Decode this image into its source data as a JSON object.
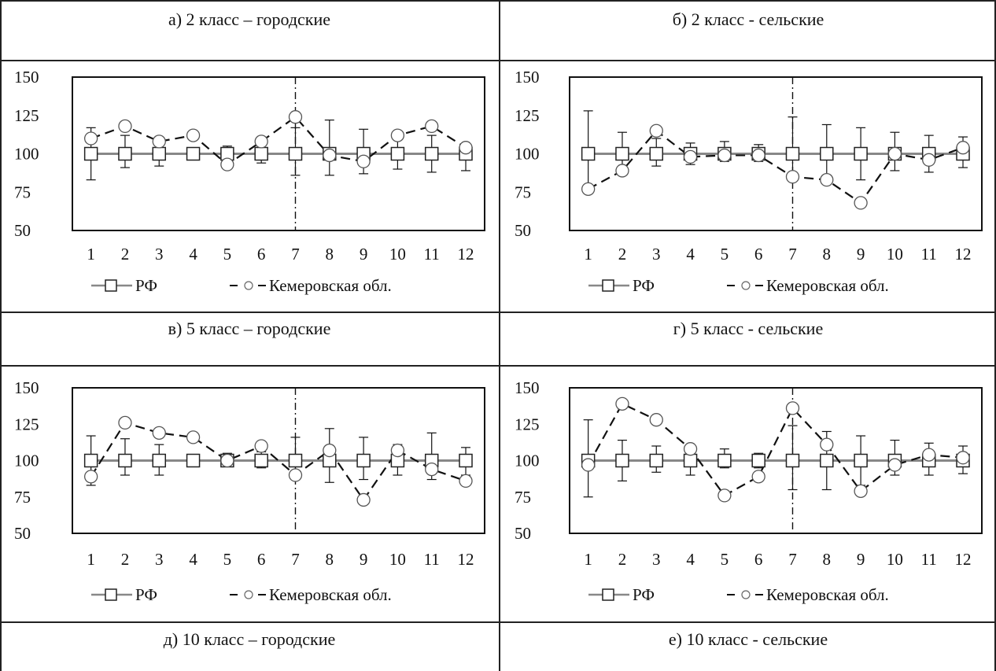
{
  "colors": {
    "line": "#111111",
    "rf_line": "#888888",
    "marker_stroke": "#222222"
  },
  "icons": {
    "rf_marker": "square-marker-icon",
    "kem_marker": "circle-marker-icon"
  },
  "rows": [
    {
      "left_title": "а) 2 класс – городские",
      "right_title": "б) 2 класс - сельские"
    },
    {
      "left_title": "в) 5 класс – городские",
      "right_title": "г) 5 класс - сельские"
    },
    {
      "left_title": "д) 10 класс – городские",
      "right_title": "е) 10 класс - сельские"
    }
  ],
  "chart_data": [
    {
      "type": "line",
      "panel": "а",
      "x": [
        1,
        2,
        3,
        4,
        5,
        6,
        7,
        8,
        9,
        10,
        11,
        12
      ],
      "ylim": [
        50,
        150
      ],
      "yticks": [
        50,
        75,
        100,
        125,
        150
      ],
      "xticks": [
        "1",
        "2",
        "3",
        "4",
        "5",
        "6",
        "7",
        "8",
        "9",
        "10",
        "11",
        "12"
      ],
      "divider_after": 6.5,
      "series": [
        {
          "name": "РФ",
          "marker": "square",
          "values": [
            100,
            100,
            100,
            100,
            100,
            100,
            100,
            100,
            100,
            100,
            100,
            100
          ],
          "err_up": [
            17,
            12,
            9,
            3,
            5,
            8,
            17,
            22,
            16,
            12,
            12,
            5
          ],
          "err_down": [
            17,
            9,
            8,
            3,
            5,
            6,
            14,
            14,
            13,
            10,
            12,
            11
          ]
        },
        {
          "name": "Кемеровская обл.",
          "marker": "circle",
          "values": [
            110,
            118,
            108,
            112,
            93,
            108,
            124,
            99,
            95,
            112,
            118,
            104
          ]
        }
      ],
      "legend": [
        "РФ",
        "Кемеровская обл."
      ]
    },
    {
      "type": "line",
      "panel": "б",
      "x": [
        1,
        2,
        3,
        4,
        5,
        6,
        7,
        8,
        9,
        10,
        11,
        12
      ],
      "ylim": [
        50,
        150
      ],
      "yticks": [
        50,
        75,
        100,
        125,
        150
      ],
      "xticks": [
        "1",
        "2",
        "3",
        "4",
        "5",
        "6",
        "7",
        "8",
        "9",
        "10",
        "11",
        "12"
      ],
      "divider_after": 6.5,
      "series": [
        {
          "name": "РФ",
          "marker": "square",
          "values": [
            100,
            100,
            100,
            100,
            100,
            100,
            100,
            100,
            100,
            100,
            100,
            100
          ],
          "err_up": [
            28,
            14,
            10,
            7,
            8,
            6,
            24,
            19,
            17,
            14,
            12,
            11
          ],
          "err_down": [
            23,
            10,
            8,
            7,
            5,
            5,
            15,
            14,
            17,
            11,
            12,
            9
          ]
        },
        {
          "name": "Кемеровская обл.",
          "marker": "circle",
          "values": [
            77,
            89,
            115,
            98,
            99,
            99,
            85,
            83,
            68,
            100,
            96,
            104
          ]
        }
      ],
      "legend": [
        "РФ",
        "Кемеровская обл."
      ]
    },
    {
      "type": "line",
      "panel": "в",
      "x": [
        1,
        2,
        3,
        4,
        5,
        6,
        7,
        8,
        9,
        10,
        11,
        12
      ],
      "ylim": [
        50,
        150
      ],
      "yticks": [
        50,
        75,
        100,
        125,
        150
      ],
      "xticks": [
        "1",
        "2",
        "3",
        "4",
        "5",
        "6",
        "7",
        "8",
        "9",
        "10",
        "11",
        "12"
      ],
      "divider_after": 6.5,
      "series": [
        {
          "name": "РФ",
          "marker": "square",
          "values": [
            100,
            100,
            100,
            100,
            100,
            100,
            100,
            100,
            100,
            100,
            100,
            100
          ],
          "err_up": [
            17,
            15,
            11,
            3,
            5,
            6,
            16,
            22,
            16,
            11,
            19,
            9
          ],
          "err_down": [
            17,
            10,
            10,
            3,
            4,
            5,
            13,
            15,
            13,
            10,
            13,
            10
          ]
        },
        {
          "name": "Кемеровская обл.",
          "marker": "circle",
          "values": [
            89,
            126,
            119,
            116,
            100,
            110,
            90,
            107,
            73,
            107,
            94,
            86
          ]
        }
      ],
      "legend": [
        "РФ",
        "Кемеровская обл."
      ]
    },
    {
      "type": "line",
      "panel": "г",
      "x": [
        1,
        2,
        3,
        4,
        5,
        6,
        7,
        8,
        9,
        10,
        11,
        12
      ],
      "ylim": [
        50,
        150
      ],
      "yticks": [
        50,
        75,
        100,
        125,
        150
      ],
      "xticks": [
        "1",
        "2",
        "3",
        "4",
        "5",
        "6",
        "7",
        "8",
        "9",
        "10",
        "11",
        "12"
      ],
      "divider_after": 6.5,
      "series": [
        {
          "name": "РФ",
          "marker": "square",
          "values": [
            100,
            100,
            100,
            100,
            100,
            100,
            100,
            100,
            100,
            100,
            100,
            100
          ],
          "err_up": [
            28,
            14,
            10,
            10,
            8,
            5,
            24,
            20,
            17,
            14,
            12,
            10
          ],
          "err_down": [
            25,
            14,
            8,
            10,
            5,
            5,
            20,
            20,
            17,
            10,
            10,
            9
          ]
        },
        {
          "name": "Кемеровская обл.",
          "marker": "circle",
          "values": [
            97,
            139,
            128,
            108,
            76,
            89,
            136,
            111,
            79,
            97,
            104,
            102
          ]
        }
      ],
      "legend": [
        "РФ",
        "Кемеровская обл."
      ]
    }
  ]
}
